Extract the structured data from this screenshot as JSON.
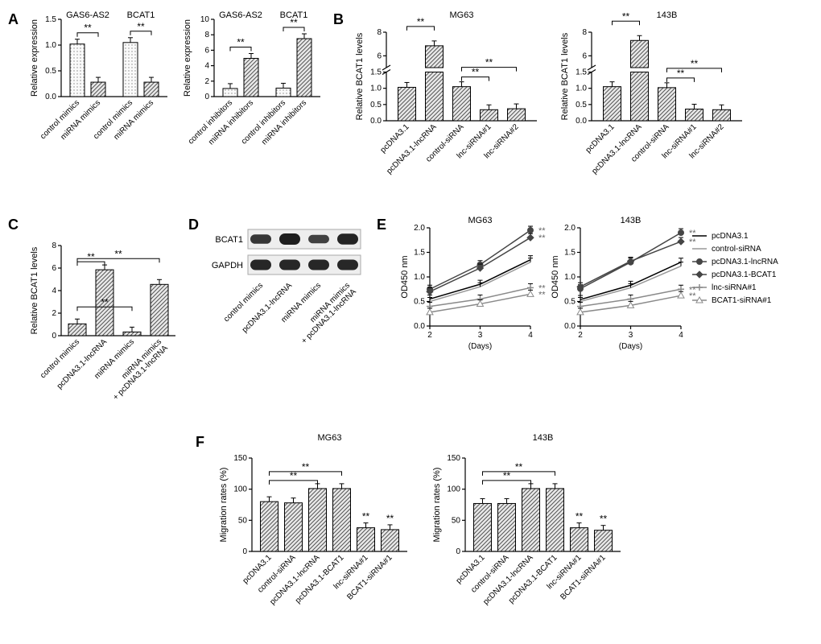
{
  "panels": {
    "A": {
      "left": {
        "ylabel": "Relative expression",
        "ylim": [
          0,
          1.5
        ],
        "ytick_step": 0.5,
        "groups": [
          {
            "title": "GAS6-AS2",
            "bars": [
              {
                "label": "control mimics",
                "value": 1.02,
                "fill": "dots"
              },
              {
                "label": "miRNA mimics",
                "value": 0.28,
                "fill": "hatch"
              }
            ],
            "sig": "**"
          },
          {
            "title": "BCAT1",
            "bars": [
              {
                "label": "control mimics",
                "value": 1.05,
                "fill": "dots"
              },
              {
                "label": "miRNA mimics",
                "value": 0.28,
                "fill": "hatch"
              }
            ],
            "sig": "**"
          }
        ]
      },
      "right": {
        "ylabel": "Relative expression",
        "ylim": [
          0,
          10
        ],
        "ytick_step": 2,
        "groups": [
          {
            "title": "GAS6-AS2",
            "bars": [
              {
                "label": "control inhibitors",
                "value": 1.05,
                "fill": "dots"
              },
              {
                "label": "miRNA inhibitors",
                "value": 4.95,
                "fill": "hatch"
              }
            ],
            "sig": "**"
          },
          {
            "title": "BCAT1",
            "bars": [
              {
                "label": "control inhibitors",
                "value": 1.1,
                "fill": "dots"
              },
              {
                "label": "miRNA inhibitors",
                "value": 7.5,
                "fill": "hatch"
              }
            ],
            "sig": "**"
          }
        ]
      }
    },
    "B": {
      "charts": [
        {
          "title": "MG63",
          "ylabel": "Relative BCAT1 levels",
          "ylim": [
            0,
            8
          ],
          "ytick_step": 2,
          "break": {
            "low": 1.5,
            "high": 5
          },
          "bars": [
            {
              "label": "pcDNA3.1",
              "value": 1.03
            },
            {
              "label": "pcDNA3.1-lncRNA",
              "value": 6.85
            },
            {
              "label": "control-siRNA",
              "value": 1.05
            },
            {
              "label": "lnc-siRNA#1",
              "value": 0.34
            },
            {
              "label": "lnc-siRNA#2",
              "value": 0.37
            }
          ],
          "sig": [
            {
              "from": 0,
              "to": 1,
              "label": "**",
              "level": 1
            },
            {
              "from": 2,
              "to": 3,
              "label": "**",
              "level": 0
            },
            {
              "from": 2,
              "to": 4,
              "label": "**",
              "level": 1
            }
          ]
        },
        {
          "title": "143B",
          "ylabel": "Relative BCAT1 levels",
          "ylim": [
            0,
            8
          ],
          "ytick_step": 2,
          "break": {
            "low": 1.5,
            "high": 5
          },
          "bars": [
            {
              "label": "pcDNA3.1",
              "value": 1.05
            },
            {
              "label": "pcDNA3.1-lncRNA",
              "value": 7.3
            },
            {
              "label": "control-siRNA",
              "value": 1.02
            },
            {
              "label": "lnc-siRNA#1",
              "value": 0.36
            },
            {
              "label": "lnc-siRNA#2",
              "value": 0.34
            }
          ],
          "sig": [
            {
              "from": 0,
              "to": 1,
              "label": "**",
              "level": 1
            },
            {
              "from": 2,
              "to": 3,
              "label": "**",
              "level": 0
            },
            {
              "from": 2,
              "to": 4,
              "label": "**",
              "level": 1
            }
          ]
        }
      ]
    },
    "C": {
      "ylabel": "Relative BCAT1 levels",
      "ylim": [
        0,
        8
      ],
      "ytick_step": 2,
      "bars": [
        {
          "label": "control mimics",
          "value": 1.05
        },
        {
          "label": "pcDNA3.1-lncRNA",
          "value": 5.85
        },
        {
          "label": "miRNA mimics",
          "value": 0.33
        },
        {
          "label": "miRNA mimics\n+ pcDNA3.1-lncRNA",
          "value": 4.55
        }
      ],
      "sig": [
        {
          "from": 0,
          "to": 1,
          "label": "**",
          "level": 0
        },
        {
          "from": 0,
          "to": 2,
          "label": "**",
          "level": 1
        },
        {
          "from": 0,
          "to": 3,
          "label": "**",
          "level": 2
        }
      ]
    },
    "D": {
      "rows": [
        {
          "label": "BCAT1",
          "intensities": [
            0.6,
            1.0,
            0.4,
            0.9
          ]
        },
        {
          "label": "GAPDH",
          "intensities": [
            0.85,
            0.85,
            0.85,
            0.85
          ]
        }
      ],
      "lanes": [
        "control mimics",
        "pcDNA3.1-lncRNA",
        "miRNA mimics",
        "miRNA mimics\n+ pcDNA3.1-lncRNA"
      ]
    },
    "E": {
      "xlabel": "(Days)",
      "ylabel": "OD450 nm",
      "ylim": [
        0,
        2.0
      ],
      "ytick_step": 0.5,
      "x": [
        2,
        3,
        4
      ],
      "legend": [
        {
          "name": "pcDNA3.1",
          "color": "#000000",
          "marker": "line"
        },
        {
          "name": "control-siRNA",
          "color": "#999999",
          "marker": "line"
        },
        {
          "name": "pcDNA3.1-lncRNA",
          "color": "#454545",
          "marker": "circle"
        },
        {
          "name": "pcDNA3.1-BCAT1",
          "color": "#454545",
          "marker": "diamond"
        },
        {
          "name": "lnc-siRNA#1",
          "color": "#8a8a8a",
          "marker": "plus"
        },
        {
          "name": "BCAT1-siRNA#1",
          "color": "#8a8a8a",
          "marker": "triangle"
        }
      ],
      "charts": [
        {
          "title": "MG63",
          "series": [
            {
              "legend": 0,
              "y": [
                0.55,
                0.85,
                1.35
              ]
            },
            {
              "legend": 1,
              "y": [
                0.5,
                0.8,
                1.3
              ]
            },
            {
              "legend": 2,
              "y": [
                0.75,
                1.25,
                1.95
              ],
              "sig": "**"
            },
            {
              "legend": 3,
              "y": [
                0.7,
                1.18,
                1.8
              ],
              "sig": "**"
            },
            {
              "legend": 4,
              "y": [
                0.4,
                0.55,
                0.78
              ],
              "sig": "**"
            },
            {
              "legend": 5,
              "y": [
                0.28,
                0.45,
                0.65
              ],
              "sig": "**"
            }
          ]
        },
        {
          "title": "143B",
          "series": [
            {
              "legend": 0,
              "y": [
                0.54,
                0.83,
                1.3
              ]
            },
            {
              "legend": 1,
              "y": [
                0.5,
                0.78,
                1.22
              ]
            },
            {
              "legend": 2,
              "y": [
                0.76,
                1.3,
                1.9
              ],
              "sig": "**"
            },
            {
              "legend": 3,
              "y": [
                0.8,
                1.32,
                1.72
              ],
              "sig": "**"
            },
            {
              "legend": 4,
              "y": [
                0.4,
                0.55,
                0.75
              ],
              "sig": "**"
            },
            {
              "legend": 5,
              "y": [
                0.28,
                0.42,
                0.62
              ],
              "sig": "**"
            }
          ]
        }
      ]
    },
    "F": {
      "ylabel": "Migration rates (%)",
      "ylim": [
        0,
        150
      ],
      "ytick_step": 50,
      "charts": [
        {
          "title": "MG63",
          "bars": [
            {
              "label": "pcDNA3.1",
              "value": 80
            },
            {
              "label": "control-siRNA",
              "value": 78
            },
            {
              "label": "pcDNA3.1-lncRNA",
              "value": 101
            },
            {
              "label": "pcDNA3.1-BCAT1",
              "value": 101
            },
            {
              "label": "lnc-siRNA#1",
              "value": 38
            },
            {
              "label": "BCAT1-siRNA#1",
              "value": 35
            }
          ],
          "sig": [
            {
              "from": 0,
              "to": 2,
              "label": "**",
              "level": 0
            },
            {
              "from": 0,
              "to": 3,
              "label": "**",
              "level": 1
            }
          ],
          "sig_right": [
            {
              "at": 4,
              "label": "**"
            },
            {
              "at": 5,
              "label": "**"
            }
          ]
        },
        {
          "title": "143B",
          "bars": [
            {
              "label": "pcDNA3.1",
              "value": 77
            },
            {
              "label": "control-siRNA",
              "value": 77
            },
            {
              "label": "pcDNA3.1-lncRNA",
              "value": 101
            },
            {
              "label": "pcDNA3.1-BCAT1",
              "value": 101
            },
            {
              "label": "lnc-siRNA#1",
              "value": 38
            },
            {
              "label": "BCAT1-siRNA#1",
              "value": 34
            }
          ],
          "sig": [
            {
              "from": 0,
              "to": 2,
              "label": "**",
              "level": 0
            },
            {
              "from": 0,
              "to": 3,
              "label": "**",
              "level": 1
            }
          ],
          "sig_right": [
            {
              "at": 4,
              "label": "**"
            },
            {
              "at": 5,
              "label": "**"
            }
          ]
        }
      ]
    }
  },
  "colors": {
    "axis": "#000000",
    "bg": "#ffffff"
  }
}
